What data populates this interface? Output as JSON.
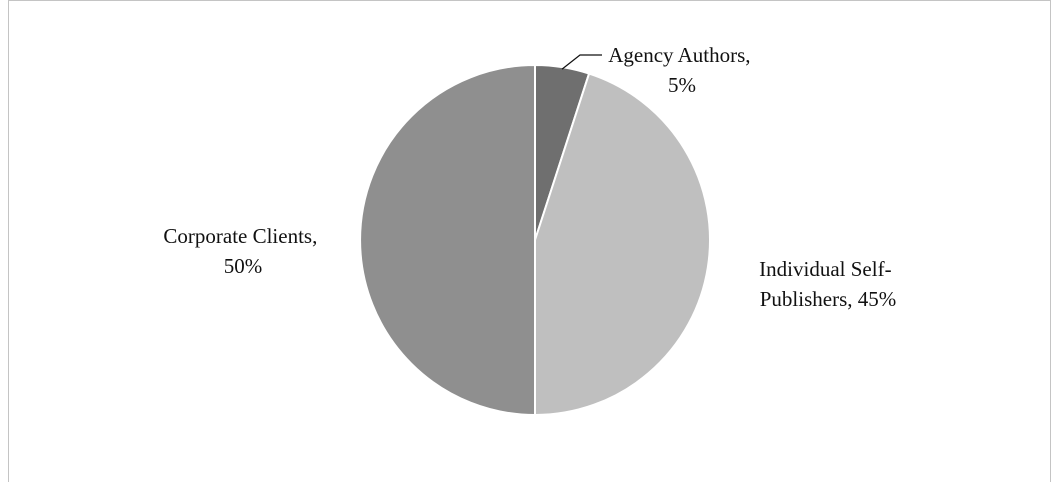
{
  "chart_data": {
    "type": "pie",
    "title": "",
    "slices": [
      {
        "label_lines": [
          "Agency Authors,",
          "5%"
        ],
        "category": "Agency Authors",
        "value": 5,
        "color": "#6f6f6f"
      },
      {
        "label_lines": [
          "Individual Self-",
          "Publishers, 45%"
        ],
        "category": "Individual Self-Publishers",
        "value": 45,
        "color": "#bfbfbf"
      },
      {
        "label_lines": [
          "Corporate Clients,",
          "50%"
        ],
        "category": "Corporate Clients",
        "value": 50,
        "color": "#8f8f8f"
      }
    ],
    "start_angle": "12 o'clock",
    "direction": "clockwise",
    "legend": "none",
    "slice_border_color": "#ffffff"
  }
}
